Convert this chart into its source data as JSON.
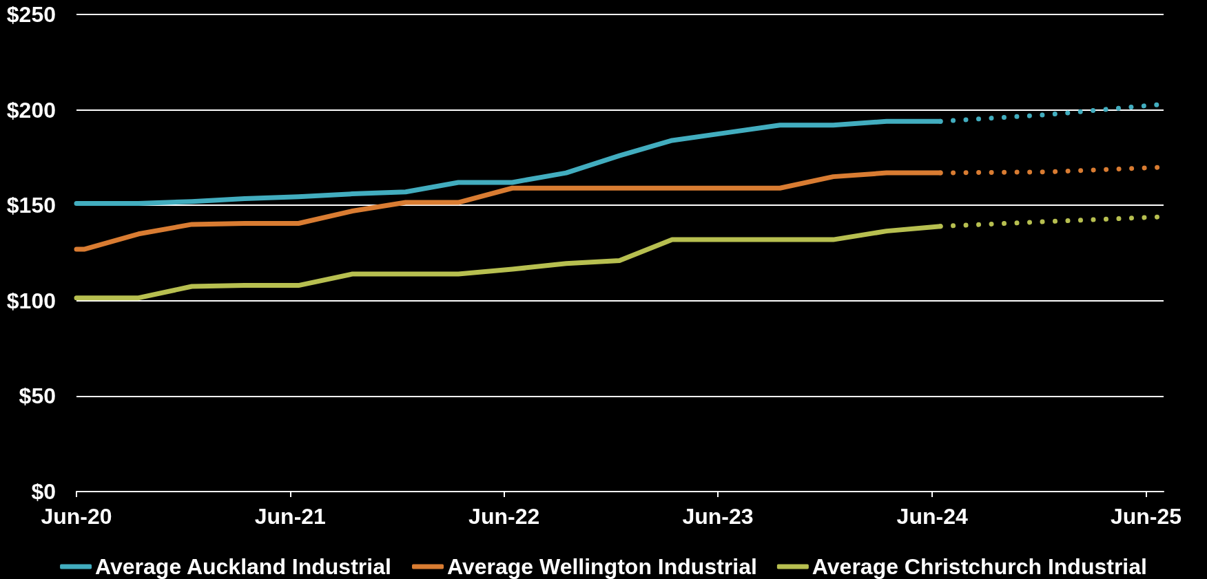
{
  "chart_data": {
    "type": "line",
    "x": [
      "2020-06-01",
      "2020-06-15",
      "2020-09-15",
      "2020-12-15",
      "2021-03-15",
      "2021-06-15",
      "2021-09-15",
      "2021-12-15",
      "2022-03-15",
      "2022-06-15",
      "2022-09-15",
      "2022-12-15",
      "2023-03-15",
      "2023-06-15",
      "2023-09-15",
      "2023-12-15",
      "2024-03-15",
      "2024-06-15"
    ],
    "xlim": [
      "2020-06-01",
      "2025-07-01"
    ],
    "xticks": [
      {
        "value": "2020-06-01",
        "label": "Jun-20"
      },
      {
        "value": "2021-06-01",
        "label": "Jun-21"
      },
      {
        "value": "2022-06-01",
        "label": "Jun-22"
      },
      {
        "value": "2023-06-01",
        "label": "Jun-23"
      },
      {
        "value": "2024-06-01",
        "label": "Jun-24"
      },
      {
        "value": "2025-06-01",
        "label": "Jun-25"
      }
    ],
    "ylim": [
      0,
      250
    ],
    "yticks": [
      {
        "value": 0,
        "label": "$0"
      },
      {
        "value": 50,
        "label": "$50"
      },
      {
        "value": 100,
        "label": "$100"
      },
      {
        "value": 150,
        "label": "$150"
      },
      {
        "value": 200,
        "label": "$200"
      },
      {
        "value": 250,
        "label": "$250"
      }
    ],
    "grid": "y",
    "legend": "bottom",
    "series": [
      {
        "name": "Average Auckland Industrial",
        "color": "#42adbf",
        "values": [
          151,
          151,
          151,
          152,
          153.5,
          154.5,
          156,
          157,
          162,
          162,
          167,
          176,
          184,
          188,
          192,
          192,
          194,
          194
        ]
      },
      {
        "name": "Average Wellington Industrial",
        "color": "#d97c32",
        "values": [
          127,
          127,
          135,
          140,
          140.5,
          140.5,
          147,
          151.5,
          151.5,
          159,
          159,
          159,
          159,
          159,
          159,
          165,
          167,
          167
        ]
      },
      {
        "name": "Average Christchurch Industrial",
        "color": "#b7bf50",
        "values": [
          101.5,
          101.5,
          101.5,
          107.5,
          108,
          108,
          114,
          114,
          114,
          116.5,
          119.5,
          121,
          132,
          132,
          132,
          132,
          136.5,
          139
        ]
      },
      {
        "color": "#42adbf",
        "line_style": "dotted",
        "x": [
          "2024-06-15",
          "2024-12-15",
          "2025-07-01"
        ],
        "values": [
          194,
          197.5,
          203
        ]
      },
      {
        "color": "#d97c32",
        "line_style": "dotted",
        "x": [
          "2024-06-15",
          "2024-12-15",
          "2025-07-01"
        ],
        "values": [
          167,
          167.5,
          170
        ]
      },
      {
        "color": "#b7bf50",
        "line_style": "dotted",
        "x": [
          "2024-06-15",
          "2024-12-15",
          "2025-07-01"
        ],
        "values": [
          139,
          141.5,
          144
        ]
      }
    ]
  }
}
